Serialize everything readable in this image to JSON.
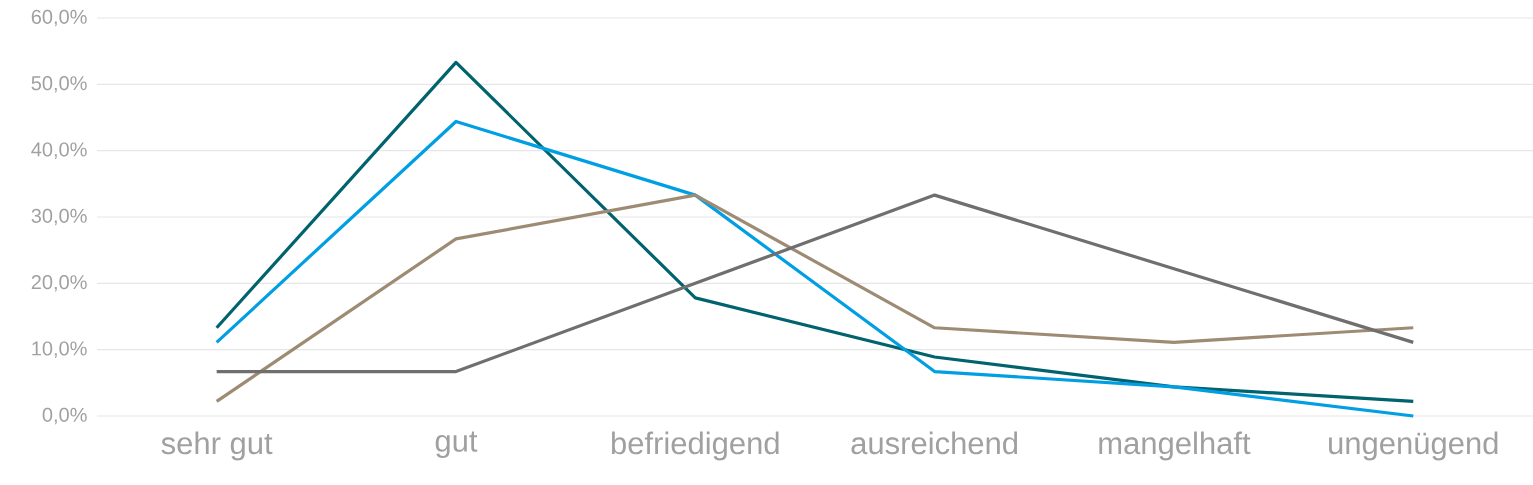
{
  "chart_data": {
    "type": "line",
    "categories": [
      "sehr gut",
      "gut",
      "befriedigend",
      "ausreichend",
      "mangelhaft",
      "ungenügend"
    ],
    "series": [
      {
        "color": "#00636e",
        "values": [
          13.3,
          53.3,
          17.8,
          8.9,
          4.4,
          2.2
        ]
      },
      {
        "color": "#009fe3",
        "values": [
          11.1,
          44.4,
          33.3,
          6.7,
          4.4,
          0
        ]
      },
      {
        "color": "#9e8b74",
        "values": [
          2.2,
          26.7,
          33.3,
          13.3,
          11.1,
          13.3
        ]
      },
      {
        "color": "#6f6f6f",
        "values": [
          6.7,
          6.7,
          20.0,
          33.3,
          22.2,
          11.1
        ]
      }
    ],
    "ylim": [
      0,
      60
    ],
    "yticks": [
      {
        "value": 0,
        "label": "0,0%"
      },
      {
        "value": 10,
        "label": "10,0%"
      },
      {
        "value": 20,
        "label": "20,0%"
      },
      {
        "value": 30,
        "label": "30,0%"
      },
      {
        "value": 40,
        "label": "40,0%"
      },
      {
        "value": 50,
        "label": "50,0%"
      },
      {
        "value": 60,
        "label": "60,0%"
      }
    ],
    "grid": "y"
  }
}
